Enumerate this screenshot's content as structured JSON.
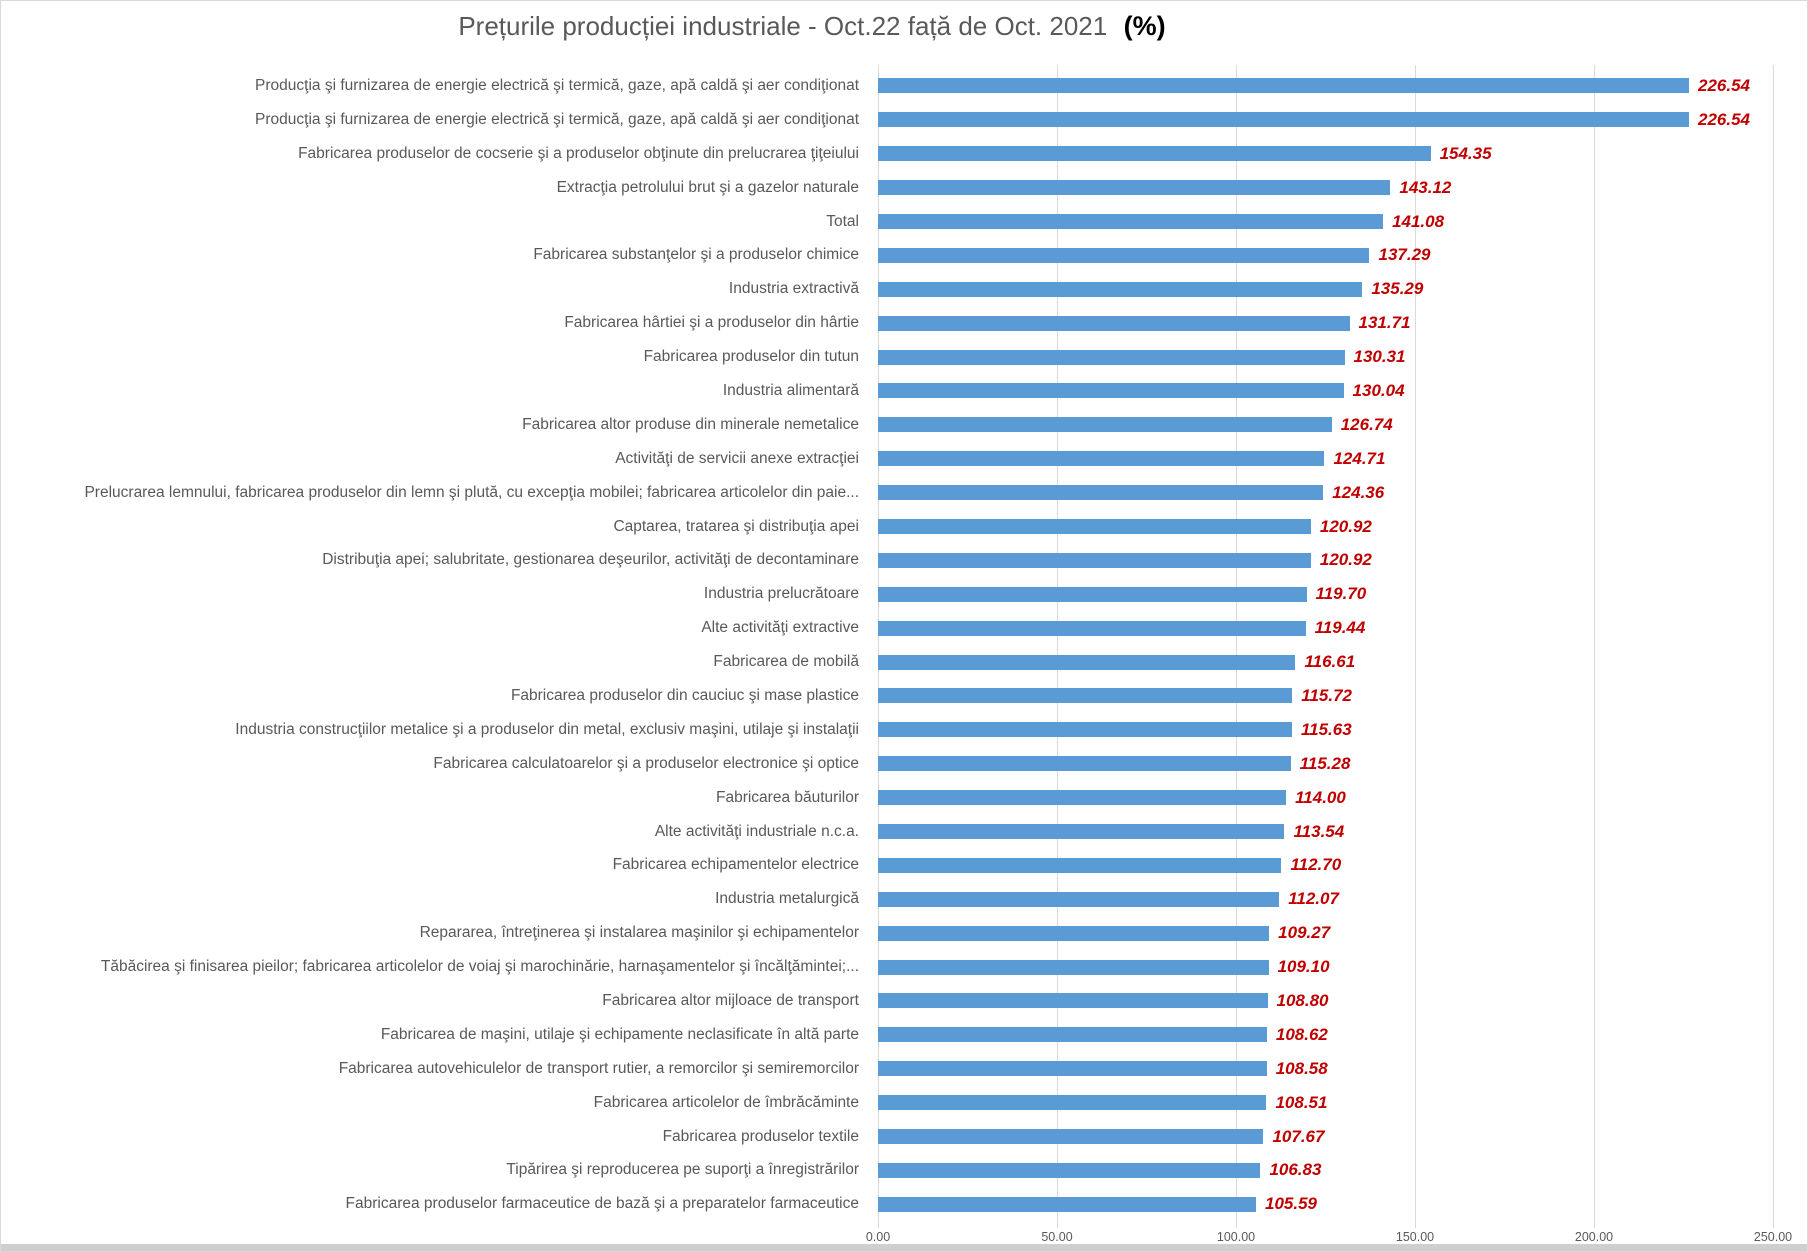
{
  "title": {
    "main": "Prețurile producției industriale - Oct.22 față de Oct. 2021",
    "suffix": "(%)"
  },
  "colors": {
    "bar": "#5b9bd5",
    "value_label": "#c00000",
    "category_label": "#595959",
    "title_text": "#595959",
    "gridline": "#d9d9d9"
  },
  "axis": {
    "tick_labels": [
      "0.00",
      "50.00",
      "100.00",
      "150.00",
      "200.00",
      "250.00"
    ]
  },
  "chart_data": {
    "type": "bar",
    "orientation": "horizontal",
    "title": "Prețurile producției industriale - Oct.22 față de Oct. 2021 (%)",
    "xlabel": "",
    "ylabel": "",
    "xlim": [
      0,
      250
    ],
    "x_ticks": [
      0,
      50,
      100,
      150,
      200,
      250
    ],
    "grid": true,
    "legend": false,
    "bar_color": "#5b9bd5",
    "value_labels_shown": true,
    "categories": [
      "Producţia şi furnizarea de energie electrică şi termică, gaze, apă caldă şi aer condiţionat",
      "Producţia şi furnizarea de energie electrică şi termică, gaze, apă caldă şi aer condiţionat",
      "Fabricarea produselor de cocserie şi a produselor obţinute din prelucrarea ţiţeiului",
      "Extracţia petrolului brut şi a gazelor naturale",
      "Total",
      "Fabricarea substanţelor şi a produselor chimice",
      "Industria extractivă",
      "Fabricarea hârtiei şi a produselor din hârtie",
      "Fabricarea produselor din tutun",
      "Industria alimentară",
      "Fabricarea altor produse din minerale nemetalice",
      "Activităţi de servicii anexe extracţiei",
      "Prelucrarea lemnului, fabricarea produselor din lemn şi plută, cu excepţia mobilei; fabricarea articolelor din paie...",
      "Captarea, tratarea şi distribuţia apei",
      "Distribuţia apei; salubritate, gestionarea deşeurilor, activităţi de decontaminare",
      "Industria prelucrătoare",
      "Alte activităţi extractive",
      "Fabricarea de mobilă",
      "Fabricarea produselor din cauciuc şi mase plastice",
      "Industria construcţiilor metalice şi a produselor din metal, exclusiv maşini, utilaje şi instalaţii",
      "Fabricarea calculatoarelor şi a produselor electronice şi optice",
      "Fabricarea băuturilor",
      "Alte activităţi industriale n.c.a.",
      "Fabricarea echipamentelor electrice",
      "Industria metalurgică",
      "Repararea, întreţinerea şi instalarea maşinilor şi echipamentelor",
      "Tăbăcirea şi finisarea pieilor; fabricarea articolelor de voiaj şi marochinărie, harnaşamentelor şi încălţămintei;...",
      "Fabricarea altor mijloace de transport",
      "Fabricarea de maşini, utilaje şi echipamente neclasificate în altă parte",
      "Fabricarea autovehiculelor de transport rutier, a remorcilor şi semiremorcilor",
      "Fabricarea articolelor de îmbrăcăminte",
      "Fabricarea produselor textile",
      "Tipărirea şi reproducerea pe suporţi a înregistrărilor",
      "Fabricarea produselor farmaceutice de bază şi a preparatelor farmaceutice"
    ],
    "values": [
      226.54,
      226.54,
      154.35,
      143.12,
      141.08,
      137.29,
      135.29,
      131.71,
      130.31,
      130.04,
      126.74,
      124.71,
      124.36,
      120.92,
      120.92,
      119.7,
      119.44,
      116.61,
      115.72,
      115.63,
      115.28,
      114.0,
      113.54,
      112.7,
      112.07,
      109.27,
      109.1,
      108.8,
      108.62,
      108.58,
      108.51,
      107.67,
      106.83,
      105.59
    ]
  }
}
